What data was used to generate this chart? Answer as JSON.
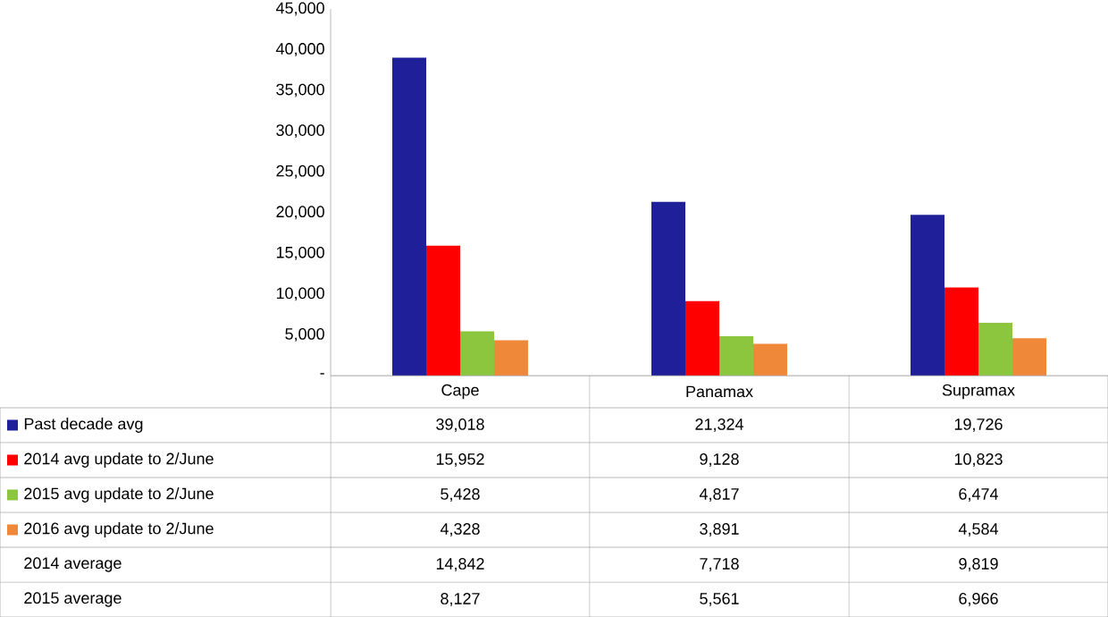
{
  "chart_data": {
    "type": "bar",
    "categories": [
      "Cape",
      "Panamax",
      "Supramax"
    ],
    "series": [
      {
        "name": "Past decade avg",
        "color": "#1f1f99",
        "values": [
          39018,
          21324,
          19726
        ],
        "value_labels": [
          "39,018",
          "21,324",
          "19,726"
        ]
      },
      {
        "name": "2014 avg update to 2/June",
        "color": "#ff0000",
        "values": [
          15952,
          9128,
          10823
        ],
        "value_labels": [
          "15,952",
          "9,128",
          "10,823"
        ]
      },
      {
        "name": "2015 avg update to 2/June",
        "color": "#8cc63f",
        "values": [
          5428,
          4817,
          6474
        ],
        "value_labels": [
          "5,428",
          "4,817",
          "6,474"
        ]
      },
      {
        "name": "2016 avg update to 2/June",
        "color": "#f0883a",
        "values": [
          4328,
          3891,
          4584
        ],
        "value_labels": [
          "4,328",
          "3,891",
          "4,584"
        ]
      }
    ],
    "ylim": [
      0,
      45000
    ],
    "yticks": [
      {
        "value": 0,
        "label": "-"
      },
      {
        "value": 5000,
        "label": "5,000"
      },
      {
        "value": 10000,
        "label": "10,000"
      },
      {
        "value": 15000,
        "label": "15,000"
      },
      {
        "value": 20000,
        "label": "20,000"
      },
      {
        "value": 25000,
        "label": "25,000"
      },
      {
        "value": 30000,
        "label": "30,000"
      },
      {
        "value": 35000,
        "label": "35,000"
      },
      {
        "value": 40000,
        "label": "40,000"
      },
      {
        "value": 45000,
        "label": "45,000"
      }
    ],
    "legend": "bottom left",
    "annotations": [
      "2014 average",
      "14,842",
      "7,718",
      "9,819",
      "2015 average",
      "8,127",
      "5,561",
      "6,966"
    ]
  }
}
